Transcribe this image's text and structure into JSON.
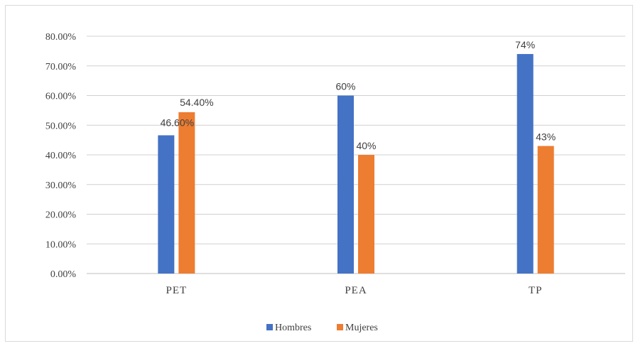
{
  "chart_data": {
    "type": "bar",
    "categories": [
      "PET",
      "PEA",
      "TP"
    ],
    "series": [
      {
        "name": "Hombres",
        "values": [
          46.6,
          60,
          74
        ],
        "labels": [
          "46.60%",
          "60%",
          "74%"
        ],
        "color": "#4472C4"
      },
      {
        "name": "Mujeres",
        "values": [
          54.4,
          40,
          43
        ],
        "labels": [
          "54.40%",
          "40%",
          "43%"
        ],
        "color": "#ED7D31"
      }
    ],
    "y_ticks": [
      "0.00%",
      "10.00%",
      "20.00%",
      "30.00%",
      "40.00%",
      "50.00%",
      "60.00%",
      "70.00%",
      "80.00%"
    ],
    "ylim": [
      0,
      80
    ],
    "grid": true,
    "legend_position": "bottom",
    "title": "",
    "xlabel": "",
    "ylabel": ""
  }
}
